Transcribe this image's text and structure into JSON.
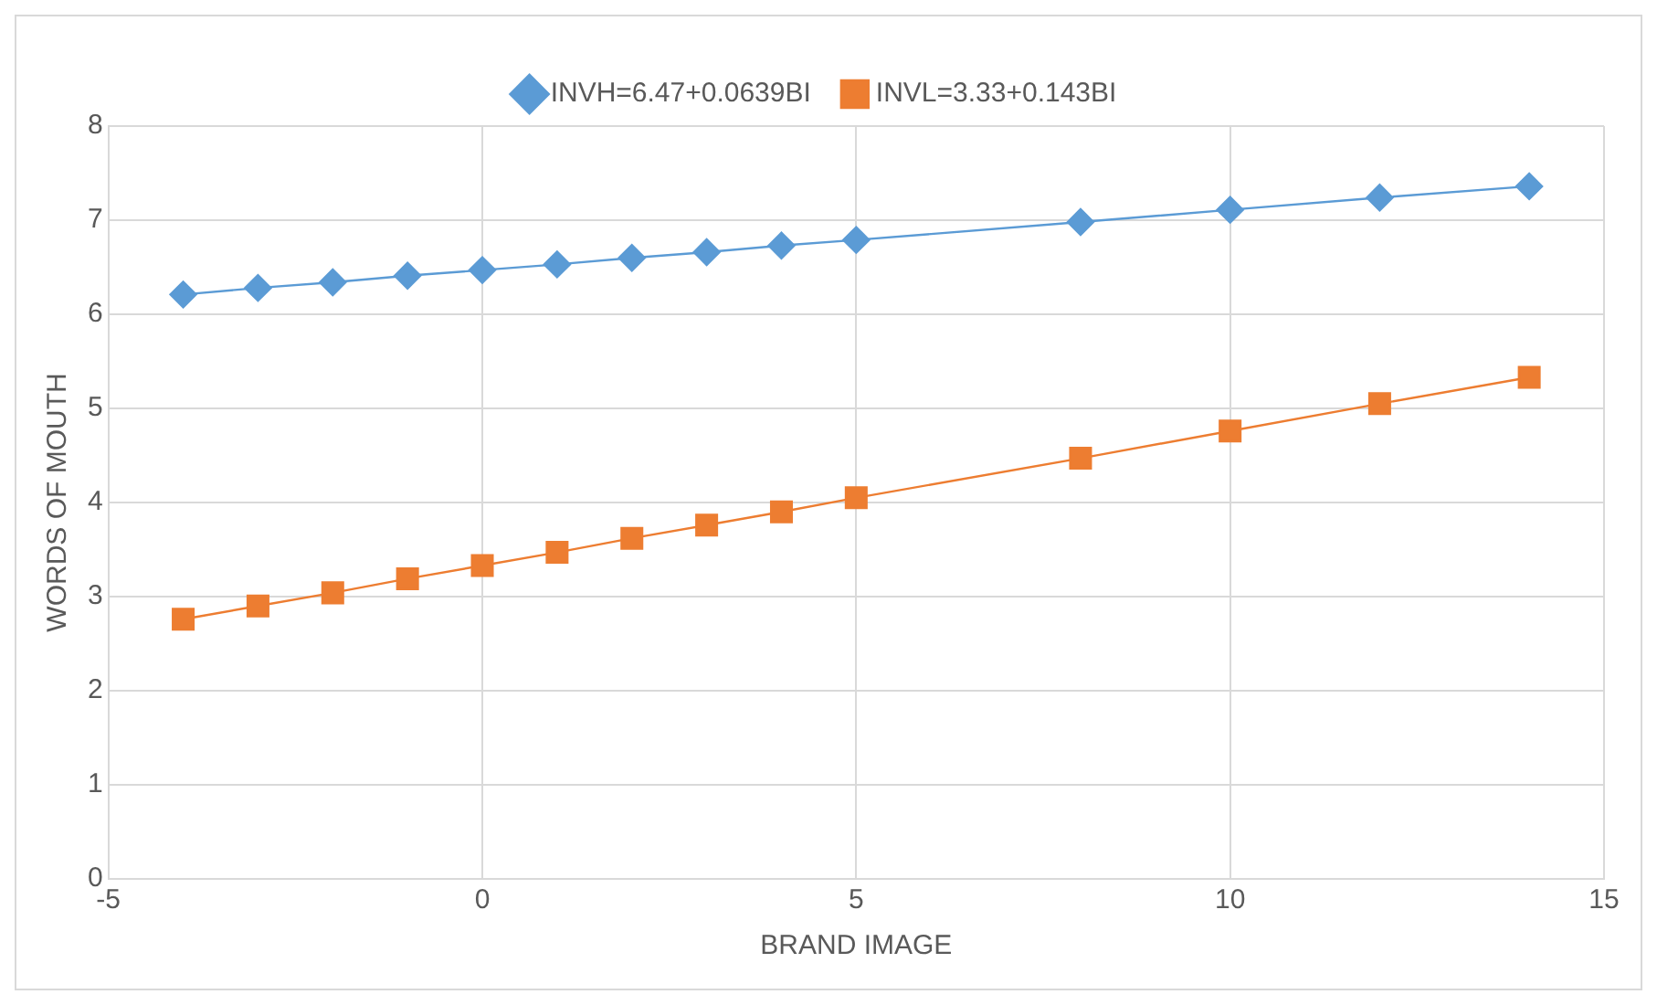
{
  "chart_data": {
    "type": "line",
    "xlabel": "BRAND IMAGE",
    "ylabel": "WORDS OF MOUTH",
    "x": [
      -4,
      -3,
      -2,
      -1,
      0,
      1,
      2,
      3,
      4,
      5,
      8,
      10,
      12,
      14
    ],
    "series": [
      {
        "name": "INVH=6.47+0.0639BI",
        "color": "#5b9bd5",
        "marker": "diamond",
        "values": [
          6.21,
          6.28,
          6.34,
          6.41,
          6.47,
          6.53,
          6.6,
          6.66,
          6.73,
          6.79,
          6.98,
          7.11,
          7.24,
          7.36
        ]
      },
      {
        "name": "INVL=3.33+0.143BI",
        "color": "#ed7d31",
        "marker": "square",
        "values": [
          2.76,
          2.9,
          3.04,
          3.19,
          3.33,
          3.47,
          3.62,
          3.76,
          3.9,
          4.05,
          4.47,
          4.76,
          5.05,
          5.33
        ]
      }
    ],
    "xlim": [
      -5,
      15
    ],
    "xticks": [
      -5,
      0,
      5,
      10,
      15
    ],
    "ylim": [
      0,
      8
    ],
    "yticks": [
      0,
      1,
      2,
      3,
      4,
      5,
      6,
      7,
      8
    ],
    "grid": true,
    "legend": "top"
  }
}
